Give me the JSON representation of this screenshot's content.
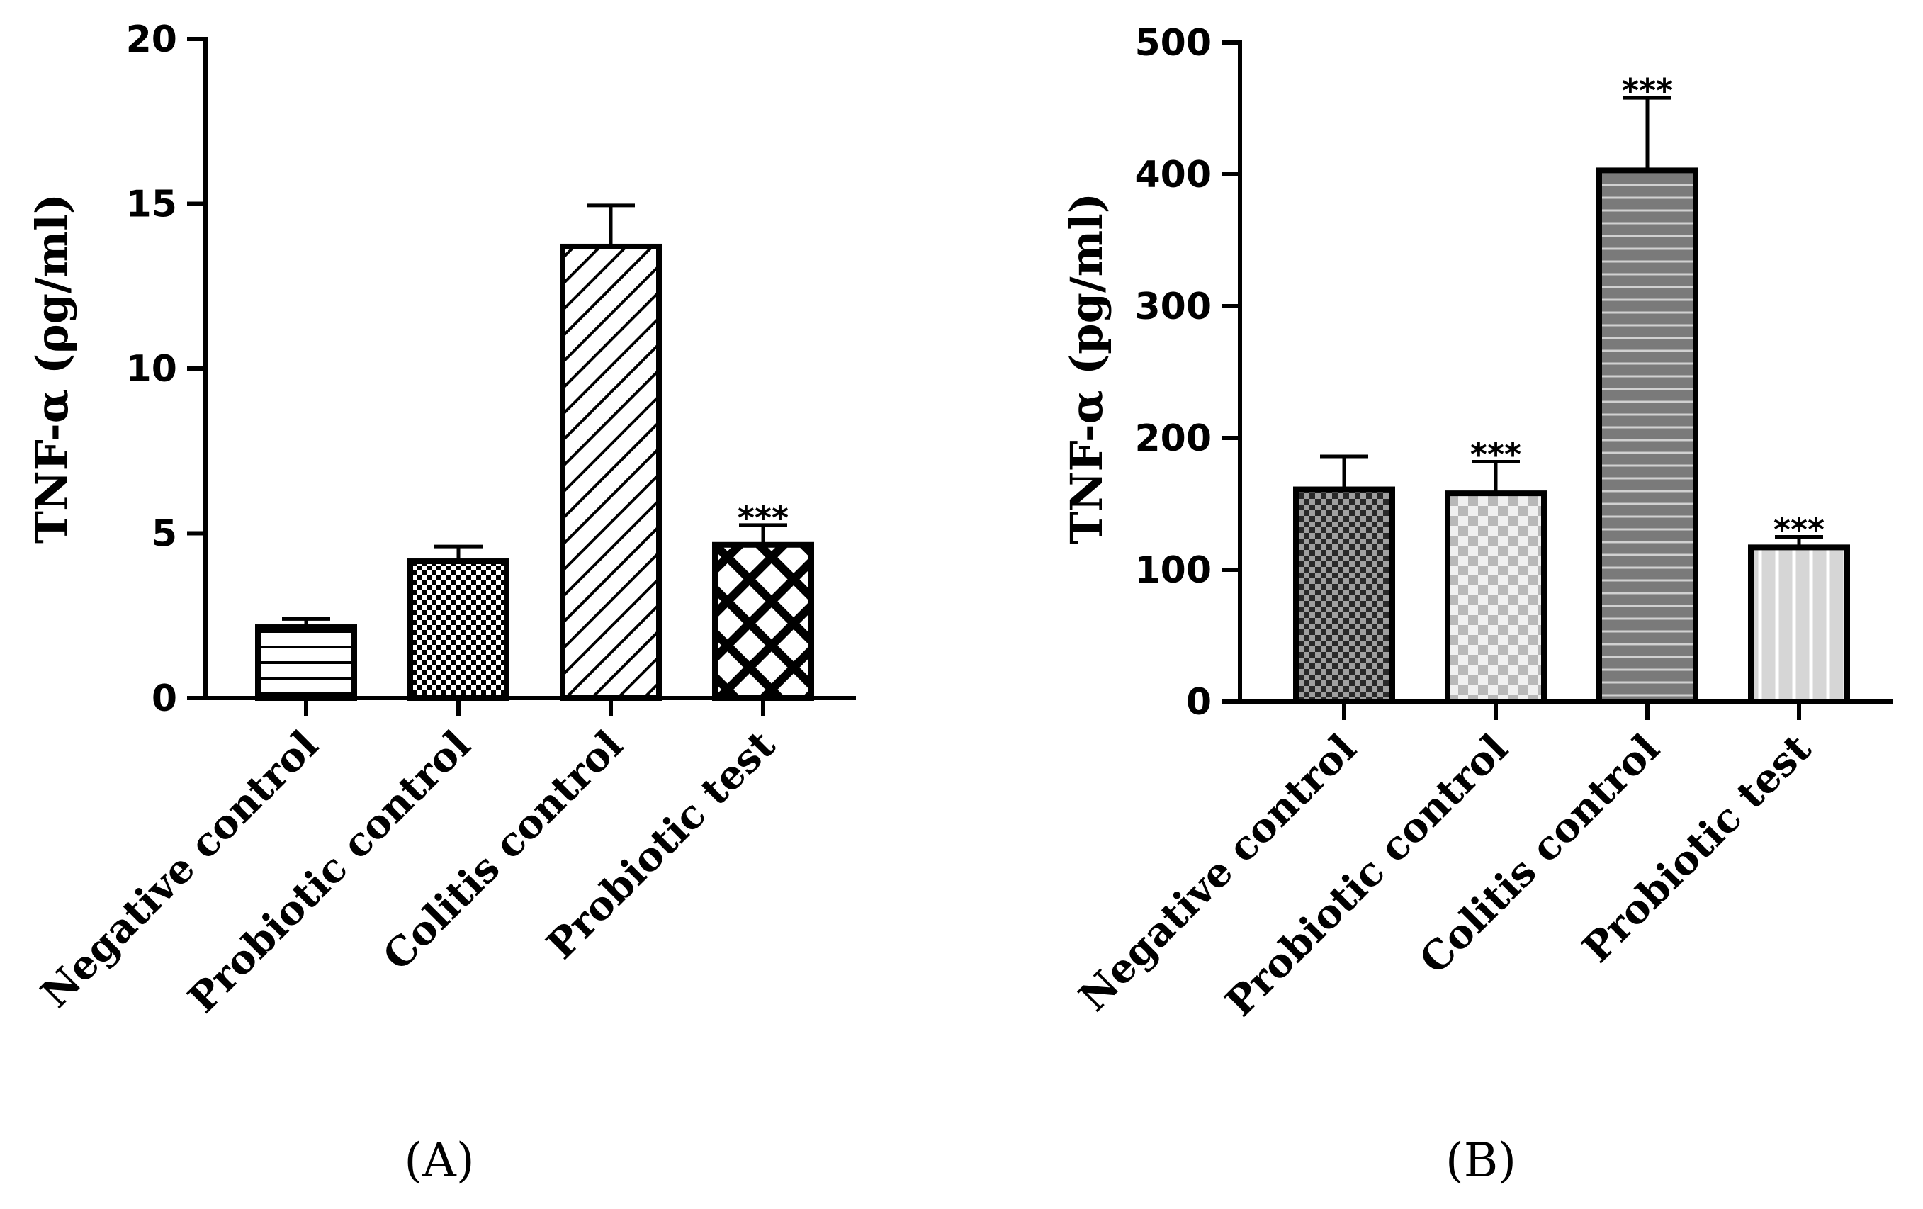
{
  "chart_data": [
    {
      "type": "bar",
      "panel": "A",
      "panel_label": "(A)",
      "ylabel": "TNF-α (ρg/ml)",
      "xlabel": "",
      "ylim": [
        0,
        20
      ],
      "yticks": [
        0,
        5,
        10,
        15,
        20
      ],
      "categories": [
        "Negative control",
        "Probiotic control",
        "Colitis control",
        "Probiotic test"
      ],
      "values": [
        2.15,
        4.15,
        13.7,
        4.65
      ],
      "errors": [
        0.25,
        0.45,
        1.25,
        0.6
      ],
      "significance": [
        "",
        "",
        "",
        "***"
      ],
      "patterns": [
        "hlines-white",
        "checker-fine",
        "diagonal",
        "crosshatch-bold"
      ]
    },
    {
      "type": "bar",
      "panel": "B",
      "panel_label": "(B)",
      "ylabel": "TNF-α (pg/ml)",
      "xlabel": "",
      "ylim": [
        0,
        500
      ],
      "yticks": [
        0,
        100,
        200,
        300,
        400,
        500
      ],
      "categories": [
        "Negative control",
        "Probiotic control",
        "Colitis control",
        "Probiotic test"
      ],
      "values": [
        161,
        158,
        403,
        117
      ],
      "errors": [
        25,
        24,
        55,
        8
      ],
      "significance": [
        "",
        "***",
        "***",
        "***"
      ],
      "patterns": [
        "checker-dark",
        "checker-light",
        "hstripes-grey",
        "vstripes-light"
      ]
    }
  ]
}
